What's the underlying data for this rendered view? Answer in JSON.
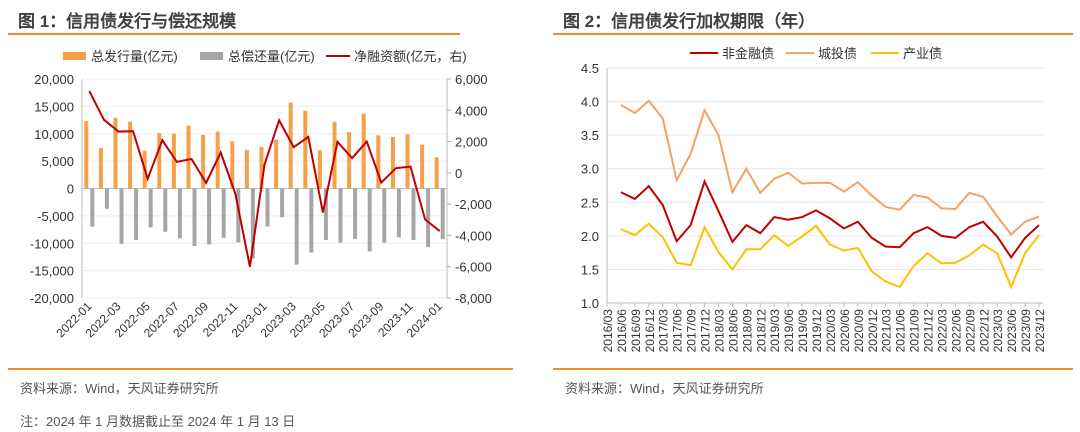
{
  "chart_data": [
    {
      "type": "bar",
      "title": "图 1：信用债发行与偿还规模",
      "categories": [
        "2022-01",
        "2022-02",
        "2022-03",
        "2022-04",
        "2022-05",
        "2022-06",
        "2022-07",
        "2022-08",
        "2022-09",
        "2022-10",
        "2022-11",
        "2022-12",
        "2023-01",
        "2023-02",
        "2023-03",
        "2023-04",
        "2023-05",
        "2023-06",
        "2023-07",
        "2023-08",
        "2023-09",
        "2023-10",
        "2023-11",
        "2023-12",
        "2024-01"
      ],
      "tick_labels": [
        "2022-01",
        "2022-03",
        "2022-05",
        "2022-07",
        "2022-09",
        "2022-11",
        "2023-01",
        "2023-03",
        "2023-05",
        "2023-07",
        "2023-09",
        "2023-11",
        "2024-01"
      ],
      "series": [
        {
          "name": "总发行量(亿元)",
          "type": "bar",
          "axis": "left",
          "color": "#f7a04a",
          "values": [
            12300,
            7400,
            12900,
            12200,
            6900,
            10150,
            10000,
            11500,
            9800,
            10400,
            8600,
            7000,
            7600,
            8900,
            15700,
            14200,
            7000,
            12200,
            10300,
            13650,
            9700,
            9400,
            9900,
            8000,
            5700
          ]
        },
        {
          "name": "总偿还量(亿元)",
          "type": "bar",
          "axis": "left",
          "color": "#a6a6a6",
          "values": [
            -6950,
            -3700,
            -10100,
            -9400,
            -7100,
            -7900,
            -9100,
            -10500,
            -10200,
            -9000,
            -9850,
            -12800,
            -6950,
            -5250,
            -13900,
            -11700,
            -9400,
            -9900,
            -9200,
            -11500,
            -9900,
            -8950,
            -9400,
            -10700,
            -9250
          ]
        },
        {
          "name": "净融资额(亿元，右)",
          "type": "line",
          "axis": "right",
          "color": "#c00000",
          "values": [
            5230,
            3400,
            2640,
            2660,
            -380,
            2090,
            700,
            890,
            -640,
            1300,
            -1320,
            -6000,
            530,
            3360,
            1640,
            2300,
            -2530,
            1980,
            940,
            2000,
            -620,
            300,
            400,
            -2980,
            -3720
          ]
        }
      ],
      "yleft": {
        "range": [
          -20000,
          20000
        ],
        "ticks": [
          "-20,000",
          "-15,000",
          "-10,000",
          "-5,000",
          "0",
          "5,000",
          "10,000",
          "15,000",
          "20,000"
        ]
      },
      "yright": {
        "range": [
          -8000,
          6000
        ],
        "ticks": [
          "-8,000",
          "-6,000",
          "-4,000",
          "-2,000",
          "0",
          "2,000",
          "4,000",
          "6,000"
        ]
      },
      "legend": "top",
      "grid": true
    },
    {
      "type": "line",
      "title": "图 2：信用债发行加权期限（年）",
      "categories": [
        "2016/03",
        "2016/06",
        "2016/09",
        "2016/12",
        "2017/03",
        "2017/06",
        "2017/09",
        "2017/12",
        "2018/03",
        "2018/06",
        "2018/09",
        "2018/12",
        "2019/03",
        "2019/06",
        "2019/09",
        "2019/12",
        "2020/03",
        "2020/06",
        "2020/09",
        "2020/12",
        "2021/03",
        "2021/06",
        "2021/09",
        "2021/12",
        "2022/03",
        "2022/06",
        "2022/09",
        "2022/12",
        "2023/03",
        "2023/06",
        "2023/09",
        "2023/12"
      ],
      "series": [
        {
          "name": "非金融债",
          "color": "#c00000",
          "values": [
            null,
            2.65,
            2.55,
            2.74,
            2.46,
            1.92,
            2.16,
            2.81,
            2.37,
            1.91,
            2.16,
            2.04,
            2.28,
            2.24,
            2.28,
            2.38,
            2.26,
            2.11,
            2.21,
            1.97,
            1.84,
            1.83,
            2.04,
            2.13,
            2.0,
            1.97,
            2.13,
            2.21,
            1.99,
            1.68,
            1.97,
            2.16
          ]
        },
        {
          "name": "城投债",
          "color": "#f4a261",
          "values": [
            null,
            3.95,
            3.83,
            4.01,
            3.75,
            2.83,
            3.22,
            3.87,
            3.5,
            2.65,
            3.0,
            2.64,
            2.85,
            2.94,
            2.78,
            2.79,
            2.79,
            2.66,
            2.8,
            2.6,
            2.43,
            2.39,
            2.61,
            2.57,
            2.41,
            2.4,
            2.64,
            2.58,
            2.29,
            2.02,
            2.21,
            2.29
          ]
        },
        {
          "name": "产业债",
          "color": "#ffc000",
          "values": [
            null,
            2.1,
            2.01,
            2.18,
            1.98,
            1.6,
            1.56,
            2.13,
            1.76,
            1.5,
            1.8,
            1.8,
            2.01,
            1.85,
            1.99,
            2.15,
            1.87,
            1.78,
            1.82,
            1.47,
            1.32,
            1.24,
            1.55,
            1.74,
            1.59,
            1.6,
            1.71,
            1.87,
            1.74,
            1.24,
            1.74,
            2.01
          ]
        }
      ],
      "yrange": [
        1.0,
        4.5
      ],
      "yticks": [
        "1.0",
        "1.5",
        "2.0",
        "2.5",
        "3.0",
        "3.5",
        "4.0",
        "4.5"
      ],
      "legend": "top",
      "grid": true
    }
  ],
  "footer": {
    "source_left": "资料来源：Wind，天风证券研究所",
    "source_right": "资料来源：Wind，天风证券研究所",
    "note": "注：2024 年 1 月数据截止至 2024 年 1 月 13 日"
  }
}
